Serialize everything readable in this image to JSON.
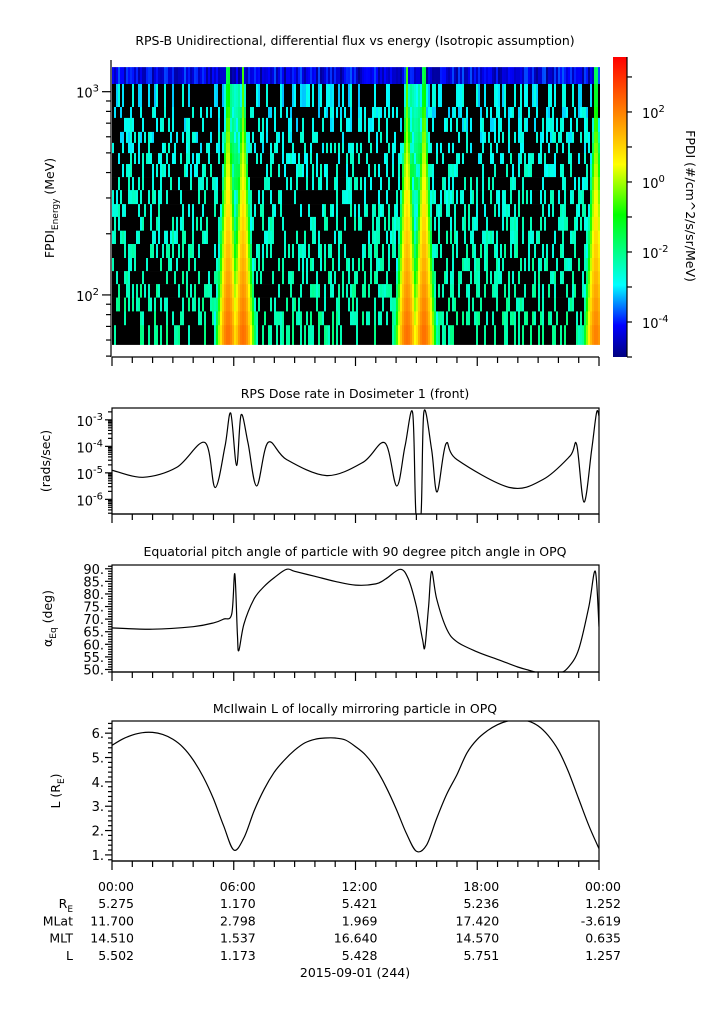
{
  "chart_data": [
    {
      "type": "heatmap",
      "title": "RPS-B  Unidirectional, differential flux vs energy (Isotropic assumption)",
      "ylabel": "FPDI",
      "ylabel_sub": "Energy",
      "ylabel_unit": " (MeV)",
      "yscale": "log",
      "ylim": [
        49.5,
        1432
      ],
      "yticks": [
        {
          "value": 100,
          "base": "10",
          "exp": "2"
        },
        {
          "value": 1000,
          "base": "10",
          "exp": "3"
        }
      ],
      "energy_bin_edges_mev": [
        1322,
        1091,
        841,
        743,
        634,
        560,
        499,
        441,
        380,
        328,
        280,
        242,
        207,
        178,
        152,
        131,
        113,
        97,
        83,
        71,
        57
      ],
      "xlim_hours": [
        0,
        24
      ],
      "belt_crossings": [
        {
          "center_hour": 6.09,
          "peak_split_hours": 0.37,
          "peak_log_flux_low_energy": 2.2,
          "peak_log_flux_high_energy": -0.6
        },
        {
          "center_hour": 14.96,
          "peak_split_hours": 0.42,
          "peak_log_flux_low_energy": 2.2,
          "peak_log_flux_high_energy": -0.6
        },
        {
          "center_hour": 23.85,
          "peak_split_hours": 0.0,
          "peak_log_flux_low_energy": 2.0,
          "peak_log_flux_high_energy": -0.8
        }
      ],
      "background_log_flux": {
        "top_channel": -4.3,
        "high_energy": -3.0,
        "low_energy": -2.2
      },
      "colorbar": {
        "label": "FPDI (#/cm^2/s/sr/MeV)",
        "log_range": [
          -5.0,
          3.57
        ],
        "ticks": [
          {
            "exp": "2",
            "value": 2
          },
          {
            "exp": "0",
            "value": 0
          },
          {
            "exp": "-2",
            "value": -2
          },
          {
            "exp": "-4",
            "value": -4
          }
        ],
        "colors": [
          {
            "at": 0.0,
            "color": "#00007f"
          },
          {
            "at": 0.105,
            "color": "#0000ff"
          },
          {
            "at": 0.24,
            "color": "#00ffff"
          },
          {
            "at": 0.474,
            "color": "#00ff00"
          },
          {
            "at": 0.642,
            "color": "#ffff00"
          },
          {
            "at": 0.817,
            "color": "#ff8000"
          },
          {
            "at": 1.0,
            "color": "#ff0000"
          }
        ]
      }
    },
    {
      "type": "line",
      "title": "RPS  Dose rate in Dosimeter 1 (front)",
      "ylabel": "(rads/sec)",
      "yscale": "log",
      "ylim": [
        2.8e-07,
        0.0028
      ],
      "yticks": [
        {
          "value": 0.001,
          "base": "10",
          "exp": "-3"
        },
        {
          "value": 0.0001,
          "base": "10",
          "exp": "-4"
        },
        {
          "value": 1e-05,
          "base": "10",
          "exp": "-5"
        },
        {
          "value": 1e-06,
          "base": "10",
          "exp": "-6"
        }
      ],
      "x": [
        0,
        1.53,
        3.19,
        4.58,
        5.08,
        5.57,
        5.85,
        6.14,
        6.36,
        6.7,
        7.13,
        7.69,
        8.6,
        10.58,
        12.37,
        13.45,
        14.03,
        14.44,
        14.82,
        14.98,
        15.23,
        15.37,
        15.75,
        16.02,
        16.46,
        16.99,
        19.6,
        21.24,
        22.57,
        22.9,
        23.26,
        23.64,
        23.88,
        24
      ],
      "y": [
        1.26e-05,
        6.8e-06,
        1.6e-05,
        0.00014,
        2.8e-06,
        0.0001,
        0.0018,
        1.9e-05,
        0.00155,
        0.000135,
        3.2e-06,
        0.00014,
        3.2e-05,
        7.9e-06,
        2.5e-05,
        0.000135,
        3.2e-06,
        0.0001,
        0.0018,
        2.5e-07,
        2.5e-07,
        0.002,
        7.6e-05,
        1.9e-06,
        0.000126,
        3.2e-05,
        2.8e-06,
        5.6e-06,
        4.3e-05,
        0.000115,
        7.9e-07,
        7.6e-05,
        0.0019,
        0.0014
      ]
    },
    {
      "type": "line",
      "title": "Equatorial pitch angle of particle with 90 degree pitch angle in OPQ",
      "ylabel": "α",
      "ylabel_sub": "Eq",
      "ylabel_unit": " (deg)",
      "yscale": "linear",
      "ylim": [
        49,
        91.5
      ],
      "yticks": [
        {
          "value": 50,
          "label": "50."
        },
        {
          "value": 55,
          "label": "55."
        },
        {
          "value": 60,
          "label": "60."
        },
        {
          "value": 65,
          "label": "65."
        },
        {
          "value": 70,
          "label": "70."
        },
        {
          "value": 75,
          "label": "75."
        },
        {
          "value": 80,
          "label": "80."
        },
        {
          "value": 85,
          "label": "85."
        },
        {
          "value": 90,
          "label": "90."
        }
      ],
      "x": [
        0,
        2,
        4,
        5,
        5.5,
        5.9,
        6.05,
        6.18,
        6.25,
        6.5,
        7,
        7.5,
        8,
        8.6,
        9,
        10,
        11,
        12,
        13,
        13.5,
        14.2,
        14.6,
        15,
        15.3,
        15.42,
        15.6,
        15.75,
        16,
        16.5,
        17,
        18,
        19,
        20,
        20.5,
        21,
        22,
        22.5,
        23,
        23.5,
        23.82,
        24
      ],
      "y": [
        66.5,
        66,
        67,
        68.5,
        70,
        72,
        88,
        64,
        57.5,
        68,
        78,
        83,
        86.5,
        89.8,
        89,
        87,
        85,
        83.5,
        84,
        86,
        89.8,
        86,
        75,
        62,
        59,
        75,
        89,
        78,
        66,
        61,
        57,
        54,
        51,
        49.8,
        48.8,
        48.5,
        51,
        58,
        75,
        89,
        67
      ]
    },
    {
      "type": "line",
      "title": "McIlwain L of locally mirroring particle in OPQ",
      "ylabel": "L (R",
      "ylabel_sub": "E",
      "ylabel_unit": ")",
      "yscale": "linear",
      "ylim": [
        0.75,
        6.5
      ],
      "yticks": [
        {
          "value": 1,
          "label": "1."
        },
        {
          "value": 2,
          "label": "2."
        },
        {
          "value": 3,
          "label": "3."
        },
        {
          "value": 4,
          "label": "4."
        },
        {
          "value": 5,
          "label": "5."
        },
        {
          "value": 6,
          "label": "6."
        }
      ],
      "x": [
        0,
        0.5,
        1,
        1.5,
        2,
        2.5,
        3,
        3.5,
        4,
        4.5,
        5,
        5.5,
        6,
        6.5,
        7,
        7.5,
        8,
        8.5,
        9,
        9.5,
        10,
        10.5,
        11,
        11.5,
        12,
        12.5,
        13,
        13.5,
        14,
        14.5,
        15,
        15.5,
        16,
        16.5,
        17,
        17.5,
        18,
        18.5,
        19,
        19.5,
        20,
        20.5,
        21,
        21.5,
        22,
        22.5,
        23,
        23.5,
        24
      ],
      "y": [
        5.5,
        5.75,
        5.92,
        6.02,
        6.03,
        5.95,
        5.75,
        5.42,
        4.9,
        4.2,
        3.3,
        2.2,
        1.2,
        1.7,
        2.8,
        3.7,
        4.4,
        4.9,
        5.3,
        5.6,
        5.75,
        5.8,
        5.8,
        5.72,
        5.45,
        5.1,
        4.55,
        3.8,
        2.9,
        1.9,
        1.15,
        1.4,
        2.5,
        3.5,
        4.3,
        5.2,
        5.75,
        6.1,
        6.35,
        6.5,
        6.55,
        6.5,
        6.3,
        5.9,
        5.3,
        4.4,
        3.3,
        2.2,
        1.26
      ]
    }
  ],
  "time_axis": {
    "tick_hours": [
      0,
      6,
      12,
      18,
      24
    ],
    "tick_labels": [
      "00:00",
      "06:00",
      "12:00",
      "18:00",
      "00:00"
    ],
    "date_label": "2015-09-01 (244)"
  },
  "ephemeris": {
    "rows": [
      {
        "label": "R",
        "label_sub": "E",
        "values": [
          "5.275",
          "1.170",
          "5.421",
          "5.236",
          "1.252"
        ]
      },
      {
        "label": "MLat",
        "label_sub": "",
        "values": [
          "11.700",
          "2.798",
          "1.969",
          "17.420",
          "-3.619"
        ]
      },
      {
        "label": "MLT",
        "label_sub": "",
        "values": [
          "14.510",
          "1.537",
          "16.640",
          "14.570",
          "0.635"
        ]
      },
      {
        "label": "L",
        "label_sub": "",
        "values": [
          "5.502",
          "1.173",
          "5.428",
          "5.751",
          "1.257"
        ]
      }
    ]
  }
}
